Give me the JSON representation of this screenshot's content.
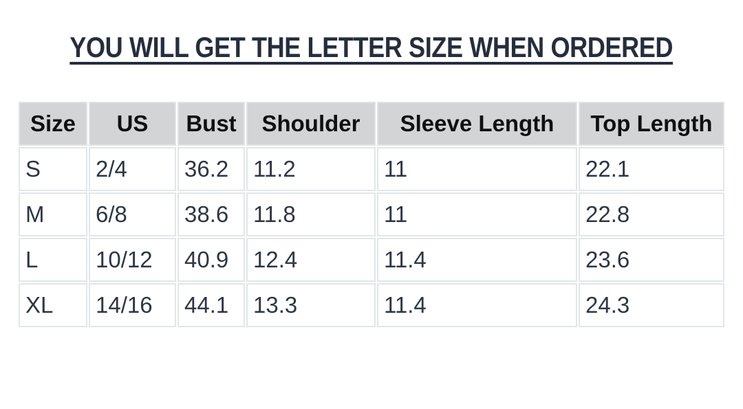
{
  "title": {
    "text": "YOU WILL GET THE LETTER SIZE WHEN ORDERED",
    "underlined": true
  },
  "chart_data": {
    "type": "table",
    "title": "YOU WILL GET THE LETTER SIZE WHEN ORDERED",
    "columns": [
      "Size",
      "US",
      "Bust",
      "Shoulder",
      "Sleeve Length",
      "Top Length"
    ],
    "rows": [
      [
        "S",
        "2/4",
        "36.2",
        "11.2",
        "11",
        "22.1"
      ],
      [
        "M",
        "6/8",
        "38.6",
        "11.8",
        "11",
        "22.8"
      ],
      [
        "L",
        "10/12",
        "40.9",
        "12.4",
        "11.4",
        "23.6"
      ],
      [
        "XL",
        "14/16",
        "44.1",
        "13.3",
        "11.4",
        "24.3"
      ]
    ],
    "layout": {
      "header_align": "center",
      "body_align": "left",
      "grid": true
    }
  },
  "colors": {
    "page_background": "#ffffff",
    "title_text": "#262d3e",
    "header_background": "#d2d4d5",
    "header_text": "#101010",
    "body_text": "#2d3547",
    "cell_border": "#e1e6e9"
  }
}
